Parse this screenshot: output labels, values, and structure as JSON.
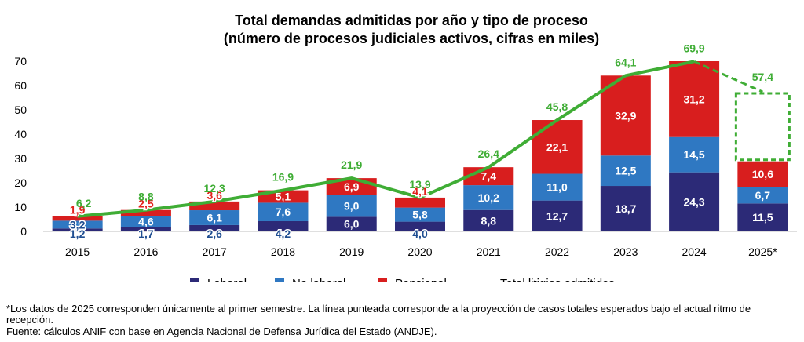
{
  "chart_data": {
    "type": "bar",
    "stacked": true,
    "title": "Total demandas admitidas por año y tipo de proceso",
    "subtitle": "(número de procesos judiciales activos, cifras en miles)",
    "categories": [
      "2015",
      "2016",
      "2017",
      "2018",
      "2019",
      "2020",
      "2021",
      "2022",
      "2023",
      "2024",
      "2025*"
    ],
    "series": [
      {
        "name": "Laboral",
        "color": "#2c2a77",
        "values": [
          1.2,
          1.7,
          2.6,
          4.2,
          6.0,
          4.0,
          8.8,
          12.7,
          18.7,
          24.3,
          11.5
        ],
        "labels": [
          "1,2",
          "1,7",
          "2,6",
          "4,2",
          "6,0",
          "4,0",
          "8,8",
          "12,7",
          "18,7",
          "24,3",
          "11,5"
        ]
      },
      {
        "name": "No laboral",
        "color": "#2f78c2",
        "values": [
          3.2,
          4.6,
          6.1,
          7.6,
          9.0,
          5.8,
          10.2,
          11.0,
          12.5,
          14.5,
          6.7
        ],
        "labels": [
          "3,2",
          "4,6",
          "6,1",
          "7,6",
          "9,0",
          "5,8",
          "10,2",
          "11,0",
          "12,5",
          "14,5",
          "6,7"
        ]
      },
      {
        "name": "Pensional",
        "color": "#d81e1e",
        "values": [
          1.9,
          2.5,
          3.6,
          5.1,
          6.9,
          4.1,
          7.4,
          22.1,
          32.9,
          31.2,
          10.6
        ],
        "labels": [
          "1,9",
          "2,5",
          "3,6",
          "5,1",
          "6,9",
          "4,1",
          "7,4",
          "22,1",
          "32,9",
          "31,2",
          "10,6"
        ]
      }
    ],
    "line": {
      "name": "Total litigios admitidos",
      "color": "#3fad35",
      "values": [
        6.2,
        8.8,
        12.3,
        16.9,
        21.9,
        13.9,
        26.4,
        45.8,
        64.1,
        69.9,
        57.4
      ],
      "labels": [
        "6,2",
        "8,8",
        "12,3",
        "16,9",
        "21,9",
        "13,9",
        "26,4",
        "45,8",
        "64,1",
        "69,9",
        "57,4"
      ],
      "projected_last": true
    },
    "yticks": [
      "0",
      "10",
      "20",
      "30",
      "40",
      "50",
      "60",
      "70"
    ],
    "ylim": [
      0,
      70
    ],
    "legend_position": "bottom"
  },
  "footnotes": {
    "note1": "*Los datos de 2025 corresponden únicamente al primer semestre. La línea punteada corresponde a la proyección de casos totales esperados bajo el actual ritmo de recepción.",
    "note2": "Fuente: cálculos ANIF con base en Agencia Nacional de Defensa Jurídica del Estado (ANDJE)."
  }
}
